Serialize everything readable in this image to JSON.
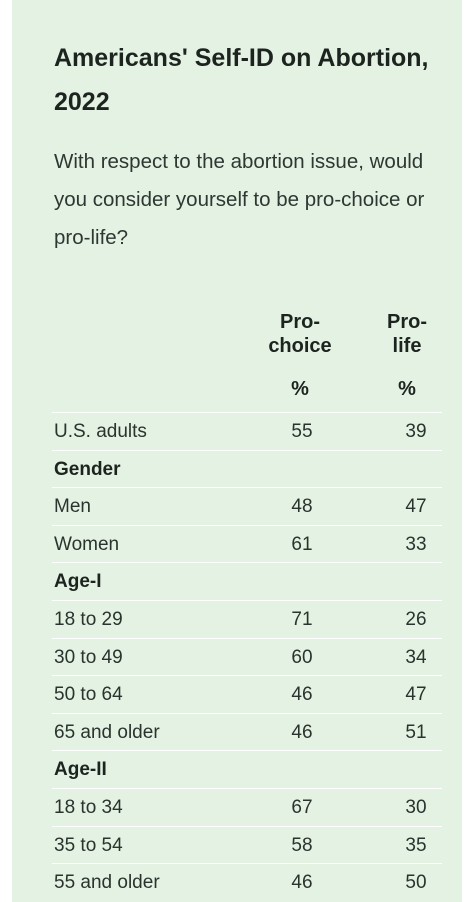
{
  "title": "Americans' Self-ID on Abortion, 2022",
  "question": "With respect to the abortion issue, would you consider yourself to be pro-choice or pro-life?",
  "columns": {
    "pro_choice_line1": "Pro-",
    "pro_choice_line2": "choice",
    "pro_life_line1": "Pro-",
    "pro_life_line2": "life",
    "unit": "%"
  },
  "rows": [
    {
      "label": "U.S. adults",
      "pro_choice": "55",
      "pro_life": "39"
    },
    {
      "label": "Gender",
      "group": true
    },
    {
      "label": "Men",
      "pro_choice": "48",
      "pro_life": "47"
    },
    {
      "label": "Women",
      "pro_choice": "61",
      "pro_life": "33"
    },
    {
      "label": "Age-I",
      "group": true
    },
    {
      "label": "18 to 29",
      "pro_choice": "71",
      "pro_life": "26"
    },
    {
      "label": "30 to 49",
      "pro_choice": "60",
      "pro_life": "34"
    },
    {
      "label": "50 to 64",
      "pro_choice": "46",
      "pro_life": "47"
    },
    {
      "label": "65 and older",
      "pro_choice": "46",
      "pro_life": "51"
    },
    {
      "label": "Age-II",
      "group": true
    },
    {
      "label": "18 to 34",
      "pro_choice": "67",
      "pro_life": "30"
    },
    {
      "label": "35 to 54",
      "pro_choice": "58",
      "pro_life": "35"
    },
    {
      "label": "55 and older",
      "pro_choice": "46",
      "pro_life": "50"
    }
  ],
  "colors": {
    "card_background": "#e4f2e3",
    "row_divider": "#ffffff"
  }
}
